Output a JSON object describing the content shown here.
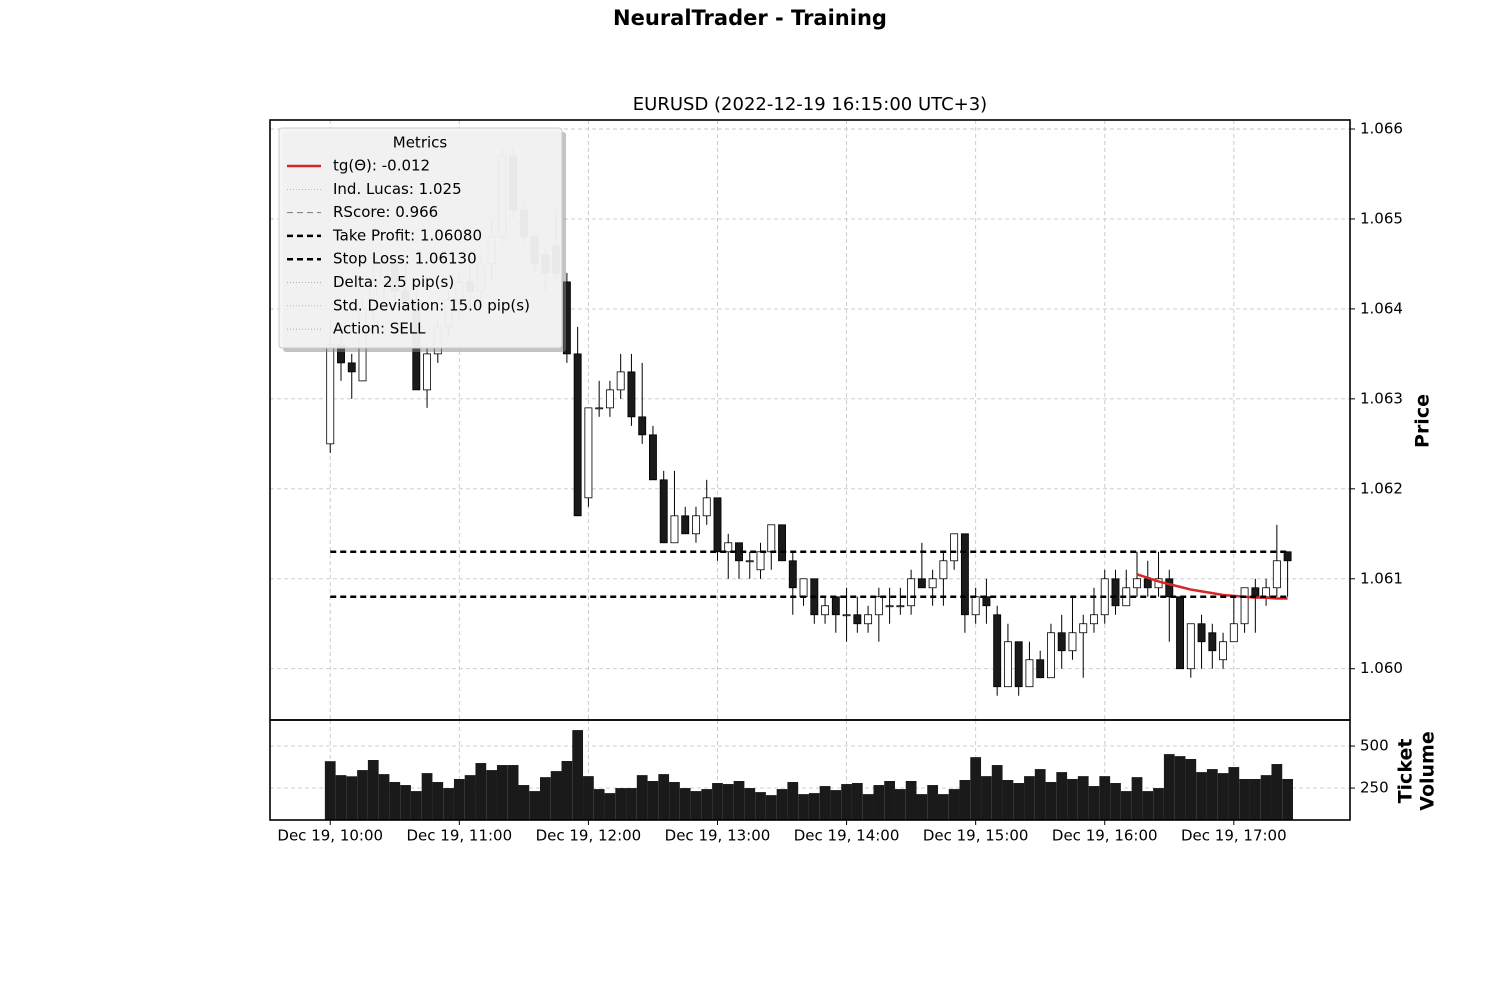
{
  "chart_data": {
    "type": "candlestick",
    "suptitle": "NeuralTrader - Training",
    "title": "EURUSD (2022-12-19 16:15:00 UTC+3)",
    "y_label": "Price",
    "grid": true,
    "up_color": "#ffffff",
    "down_color": "#1a1a1a",
    "x": [
      "Dec 19, 10:00",
      "Dec 19, 10:05",
      "Dec 19, 10:10",
      "Dec 19, 10:15",
      "Dec 19, 10:20",
      "Dec 19, 10:25",
      "Dec 19, 10:30",
      "Dec 19, 10:35",
      "Dec 19, 10:40",
      "Dec 19, 10:45",
      "Dec 19, 10:50",
      "Dec 19, 10:55",
      "Dec 19, 11:00",
      "Dec 19, 11:05",
      "Dec 19, 11:10",
      "Dec 19, 11:15",
      "Dec 19, 11:20",
      "Dec 19, 11:25",
      "Dec 19, 11:30",
      "Dec 19, 11:35",
      "Dec 19, 11:40",
      "Dec 19, 11:45",
      "Dec 19, 11:50",
      "Dec 19, 11:55",
      "Dec 19, 12:00",
      "Dec 19, 12:05",
      "Dec 19, 12:10",
      "Dec 19, 12:15",
      "Dec 19, 12:20",
      "Dec 19, 12:25",
      "Dec 19, 12:30",
      "Dec 19, 12:35",
      "Dec 19, 12:40",
      "Dec 19, 12:45",
      "Dec 19, 12:50",
      "Dec 19, 12:55",
      "Dec 19, 13:00",
      "Dec 19, 13:05",
      "Dec 19, 13:10",
      "Dec 19, 13:15",
      "Dec 19, 13:20",
      "Dec 19, 13:25",
      "Dec 19, 13:30",
      "Dec 19, 13:35",
      "Dec 19, 13:40",
      "Dec 19, 13:45",
      "Dec 19, 13:50",
      "Dec 19, 13:55",
      "Dec 19, 14:00",
      "Dec 19, 14:05",
      "Dec 19, 14:10",
      "Dec 19, 14:15",
      "Dec 19, 14:20",
      "Dec 19, 14:25",
      "Dec 19, 14:30",
      "Dec 19, 14:35",
      "Dec 19, 14:40",
      "Dec 19, 14:45",
      "Dec 19, 14:50",
      "Dec 19, 14:55",
      "Dec 19, 15:00",
      "Dec 19, 15:05",
      "Dec 19, 15:10",
      "Dec 19, 15:15",
      "Dec 19, 15:20",
      "Dec 19, 15:25",
      "Dec 19, 15:30",
      "Dec 19, 15:35",
      "Dec 19, 15:40",
      "Dec 19, 15:45",
      "Dec 19, 15:50",
      "Dec 19, 15:55",
      "Dec 19, 16:00",
      "Dec 19, 16:05",
      "Dec 19, 16:10",
      "Dec 19, 16:15",
      "Dec 19, 16:20",
      "Dec 19, 16:25",
      "Dec 19, 16:30",
      "Dec 19, 16:35",
      "Dec 19, 16:40",
      "Dec 19, 16:45",
      "Dec 19, 16:50",
      "Dec 19, 16:55",
      "Dec 19, 17:00",
      "Dec 19, 17:05",
      "Dec 19, 17:10",
      "Dec 19, 17:15",
      "Dec 19, 17:20",
      "Dec 19, 17:25"
    ],
    "open": [
      1.0625,
      1.0636,
      1.0634,
      1.0632,
      1.064,
      1.0643,
      1.0645,
      1.0642,
      1.0641,
      1.0631,
      1.0635,
      1.0638,
      1.0641,
      1.0643,
      1.0642,
      1.0645,
      1.0648,
      1.0657,
      1.0651,
      1.0648,
      1.0646,
      1.0647,
      1.0643,
      1.0635,
      1.0619,
      1.0629,
      1.0629,
      1.0631,
      1.0633,
      1.0628,
      1.0626,
      1.0621,
      1.0614,
      1.0617,
      1.0615,
      1.0617,
      1.0619,
      1.0613,
      1.0614,
      1.0612,
      1.0611,
      1.0613,
      1.0616,
      1.0612,
      1.0608,
      1.061,
      1.0606,
      1.0608,
      1.0606,
      1.0606,
      1.0605,
      1.0606,
      1.0607,
      1.0607,
      1.0607,
      1.061,
      1.0609,
      1.061,
      1.0612,
      1.0615,
      1.0606,
      1.0608,
      1.0606,
      1.0598,
      1.0603,
      1.0598,
      1.0601,
      1.0599,
      1.0604,
      1.0602,
      1.0604,
      1.0605,
      1.0606,
      1.061,
      1.0607,
      1.0609,
      1.061,
      1.0609,
      1.061,
      1.0608,
      1.06,
      1.0605,
      1.0604,
      1.0601,
      1.0603,
      1.0605,
      1.0609,
      1.0608,
      1.0609,
      1.0613
    ],
    "high": [
      1.0639,
      1.0637,
      1.0635,
      1.0641,
      1.0645,
      1.0646,
      1.0646,
      1.0645,
      1.0642,
      1.0636,
      1.0639,
      1.0642,
      1.0644,
      1.0645,
      1.0646,
      1.065,
      1.0658,
      1.0658,
      1.0652,
      1.0648,
      1.0647,
      1.0651,
      1.0644,
      1.0638,
      1.0629,
      1.0632,
      1.0632,
      1.0635,
      1.0635,
      1.0634,
      1.0627,
      1.0622,
      1.0622,
      1.0618,
      1.0618,
      1.0621,
      1.0619,
      1.0615,
      1.0614,
      1.0613,
      1.0614,
      1.0616,
      1.0616,
      1.0613,
      1.061,
      1.061,
      1.0608,
      1.0608,
      1.0609,
      1.0608,
      1.0607,
      1.0609,
      1.0609,
      1.0609,
      1.0611,
      1.0614,
      1.0611,
      1.0613,
      1.0615,
      1.0615,
      1.0609,
      1.061,
      1.0607,
      1.0605,
      1.0603,
      1.0603,
      1.0602,
      1.0605,
      1.0606,
      1.0608,
      1.0606,
      1.0609,
      1.0611,
      1.0611,
      1.0611,
      1.0613,
      1.0612,
      1.0613,
      1.0611,
      1.0608,
      1.0605,
      1.0606,
      1.0605,
      1.0604,
      1.0608,
      1.0609,
      1.061,
      1.061,
      1.0616,
      1.0613
    ],
    "low": [
      1.0624,
      1.0632,
      1.063,
      1.0632,
      1.0639,
      1.0641,
      1.0641,
      1.064,
      1.0631,
      1.0629,
      1.0634,
      1.0637,
      1.0639,
      1.064,
      1.0641,
      1.0643,
      1.0647,
      1.065,
      1.0647,
      1.0644,
      1.0642,
      1.0643,
      1.0634,
      1.0617,
      1.0618,
      1.0628,
      1.0628,
      1.063,
      1.0627,
      1.0625,
      1.0621,
      1.0614,
      1.0614,
      1.0615,
      1.0614,
      1.0616,
      1.0612,
      1.061,
      1.061,
      1.061,
      1.061,
      1.0611,
      1.0612,
      1.0606,
      1.0607,
      1.0605,
      1.0605,
      1.0604,
      1.0603,
      1.0604,
      1.0604,
      1.0603,
      1.0605,
      1.0606,
      1.0606,
      1.0609,
      1.0607,
      1.0607,
      1.0611,
      1.0604,
      1.0605,
      1.0605,
      1.0597,
      1.0598,
      1.0597,
      1.0598,
      1.0599,
      1.0599,
      1.06,
      1.0601,
      1.0599,
      1.0604,
      1.0605,
      1.0606,
      1.0607,
      1.0608,
      1.0608,
      1.0608,
      1.0603,
      1.06,
      1.0599,
      1.06,
      1.06,
      1.06,
      1.0603,
      1.0604,
      1.0604,
      1.0607,
      1.0608,
      1.0608
    ],
    "close": [
      1.0636,
      1.0634,
      1.0633,
      1.064,
      1.0643,
      1.0645,
      1.0642,
      1.0641,
      1.0631,
      1.0635,
      1.0638,
      1.0641,
      1.0643,
      1.0642,
      1.0645,
      1.0648,
      1.0657,
      1.0651,
      1.0648,
      1.0645,
      1.0644,
      1.0644,
      1.0635,
      1.0617,
      1.0629,
      1.0629,
      1.0631,
      1.0633,
      1.0628,
      1.0626,
      1.0621,
      1.0614,
      1.0617,
      1.0615,
      1.0617,
      1.0619,
      1.0613,
      1.0614,
      1.0612,
      1.0612,
      1.0613,
      1.0616,
      1.0612,
      1.0609,
      1.061,
      1.0606,
      1.0607,
      1.0606,
      1.0606,
      1.0605,
      1.0606,
      1.0608,
      1.0607,
      1.0607,
      1.061,
      1.0609,
      1.061,
      1.0612,
      1.0615,
      1.0606,
      1.0608,
      1.0607,
      1.0598,
      1.0603,
      1.0598,
      1.0601,
      1.0599,
      1.0604,
      1.0602,
      1.0604,
      1.0605,
      1.0606,
      1.061,
      1.0607,
      1.0609,
      1.061,
      1.0609,
      1.061,
      1.0608,
      1.06,
      1.0605,
      1.0603,
      1.0602,
      1.0603,
      1.0605,
      1.0609,
      1.0608,
      1.0609,
      1.0612,
      1.0612
    ],
    "xlim": [
      "Dec 19, 09:32",
      "Dec 19, 17:54"
    ],
    "xticks": [
      "Dec 19, 10:00",
      "Dec 19, 11:00",
      "Dec 19, 12:00",
      "Dec 19, 13:00",
      "Dec 19, 14:00",
      "Dec 19, 15:00",
      "Dec 19, 16:00",
      "Dec 19, 17:00"
    ],
    "ylim": [
      1.05943,
      1.0661
    ],
    "yticks": [
      {
        "value": 1.06,
        "label": "1.060"
      },
      1.061,
      1.062,
      1.063,
      1.064,
      1.065,
      1.066
    ],
    "legend": {
      "title": "Metrics",
      "series": [
        {
          "name": "tg(Θ): -0.012",
          "color": "#d62728",
          "dash": "solid",
          "width": 2.5,
          "x": [
            "Dec 19, 16:15",
            "Dec 19, 16:20",
            "Dec 19, 16:25",
            "Dec 19, 16:30",
            "Dec 19, 16:35",
            "Dec 19, 16:40",
            "Dec 19, 16:45",
            "Dec 19, 16:50",
            "Dec 19, 16:55",
            "Dec 19, 17:00",
            "Dec 19, 17:05",
            "Dec 19, 17:10",
            "Dec 19, 17:15",
            "Dec 19, 17:20",
            "Dec 19, 17:25"
          ],
          "values": [
            1.06105,
            1.06101,
            1.06097,
            1.06094,
            1.06091,
            1.06088,
            1.06086,
            1.06084,
            1.06082,
            1.06081,
            1.0608,
            1.06079,
            1.06079,
            1.06078,
            1.06078
          ]
        },
        {
          "name": "Ind. Lucas: 1.025",
          "color": "#999999",
          "dash": "dotted",
          "width": 0.7
        },
        {
          "name": "RScore: 0.966",
          "color": "#777777",
          "dash": "dashed",
          "width": 1
        },
        {
          "name": "Take Profit: 1.06080",
          "color": "#000000",
          "dash": "dashed",
          "width": 2.5,
          "value": 1.0608
        },
        {
          "name": "Stop Loss: 1.06130",
          "color": "#000000",
          "dash": "dashed",
          "width": 2.5,
          "value": 1.0613
        },
        {
          "name": "Delta: 2.5 pip(s)",
          "color": "#999999",
          "dash": "dotted",
          "width": 0.7
        },
        {
          "name": "Std. Deviation: 15.0 pip(s)",
          "color": "#999999",
          "dash": "dotted",
          "width": 0.7
        },
        {
          "name": "Action: SELL",
          "color": "#999999",
          "dash": "dotted",
          "width": 0.7
        }
      ]
    },
    "volume": {
      "label": [
        "Ticket",
        "Volume"
      ],
      "color": "#1a1a1a",
      "ylim": [
        60,
        655
      ],
      "yticks": [
        250,
        500
      ],
      "values": [
        410,
        327,
        320,
        357,
        417,
        333,
        286,
        268,
        232,
        339,
        286,
        250,
        304,
        327,
        399,
        357,
        387,
        387,
        268,
        232,
        315,
        351,
        411,
        595,
        321,
        244,
        220,
        250,
        250,
        327,
        292,
        333,
        286,
        250,
        232,
        244,
        280,
        274,
        292,
        250,
        226,
        208,
        244,
        286,
        214,
        220,
        262,
        238,
        274,
        280,
        214,
        268,
        292,
        244,
        292,
        214,
        268,
        214,
        244,
        298,
        434,
        321,
        387,
        298,
        280,
        321,
        363,
        286,
        345,
        304,
        321,
        262,
        321,
        280,
        232,
        315,
        232,
        250,
        452,
        440,
        423,
        345,
        363,
        339,
        375,
        304,
        304,
        327,
        393,
        304
      ]
    }
  }
}
